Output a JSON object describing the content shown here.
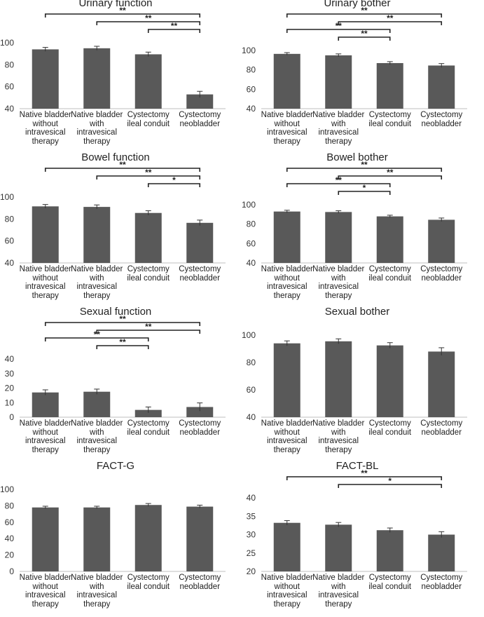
{
  "categories": [
    "Native bladder without intravesical therapy",
    "Native bladder with intravesical therapy",
    "Cystectomy ileal conduit",
    "Cystectomy neobladder"
  ],
  "category_lines": [
    [
      "Native bladder",
      "without",
      "intravesical",
      "therapy"
    ],
    [
      "Native bladder",
      "with",
      "intravesical",
      "therapy"
    ],
    [
      "Cystectomy",
      "ileal conduit"
    ],
    [
      "Cystectomy",
      "neobladder"
    ]
  ],
  "colors": {
    "bar": "#595959",
    "axis": "#bfbfbf",
    "sig": "#222222"
  },
  "chart_data": [
    {
      "type": "bar",
      "title": "Urinary function",
      "ylim": [
        40,
        100
      ],
      "yticks": [
        40,
        60,
        80,
        100
      ],
      "values": [
        94,
        95,
        89.5,
        53
      ],
      "errors": [
        1.8,
        1.8,
        2,
        2.8
      ],
      "significance": [
        {
          "from": 0,
          "to": 3,
          "label": "**"
        },
        {
          "from": 1,
          "to": 3,
          "label": "**"
        },
        {
          "from": 2,
          "to": 3,
          "label": "**"
        }
      ]
    },
    {
      "type": "bar",
      "title": "Urinary bother",
      "ylim": [
        40,
        100
      ],
      "yticks": [
        40,
        60,
        80,
        100
      ],
      "values": [
        96.5,
        95,
        87,
        84.5
      ],
      "errors": [
        1.3,
        1.5,
        1.5,
        2
      ],
      "significance": [
        {
          "from": 0,
          "to": 3,
          "label": "**"
        },
        {
          "from": 1,
          "to": 3,
          "label": "**"
        },
        {
          "from": 0,
          "to": 2,
          "label": "**"
        },
        {
          "from": 1,
          "to": 2,
          "label": "**"
        }
      ]
    },
    {
      "type": "bar",
      "title": "Bowel function",
      "ylim": [
        40,
        100
      ],
      "yticks": [
        40,
        60,
        80,
        100
      ],
      "values": [
        91.5,
        91,
        85.5,
        76.5
      ],
      "errors": [
        1.7,
        1.8,
        2,
        2.5
      ],
      "significance": [
        {
          "from": 0,
          "to": 3,
          "label": "**"
        },
        {
          "from": 1,
          "to": 3,
          "label": "**"
        },
        {
          "from": 2,
          "to": 3,
          "label": "*"
        }
      ]
    },
    {
      "type": "bar",
      "title": "Bowel bother",
      "ylim": [
        40,
        100
      ],
      "yticks": [
        40,
        60,
        80,
        100
      ],
      "values": [
        93,
        92.5,
        88,
        84.5
      ],
      "errors": [
        1.3,
        1.3,
        1.2,
        1.8
      ],
      "significance": [
        {
          "from": 0,
          "to": 3,
          "label": "**"
        },
        {
          "from": 1,
          "to": 3,
          "label": "**"
        },
        {
          "from": 0,
          "to": 2,
          "label": "**"
        },
        {
          "from": 1,
          "to": 2,
          "label": "*"
        }
      ]
    },
    {
      "type": "bar",
      "title": "Sexual function",
      "ylim": [
        0,
        40
      ],
      "yticks": [
        0,
        10,
        20,
        30,
        40
      ],
      "values": [
        17,
        17.5,
        5,
        7
      ],
      "errors": [
        1.8,
        1.8,
        2,
        2.8
      ],
      "significance": [
        {
          "from": 0,
          "to": 3,
          "label": "**"
        },
        {
          "from": 1,
          "to": 3,
          "label": "**"
        },
        {
          "from": 0,
          "to": 2,
          "label": "**"
        },
        {
          "from": 1,
          "to": 2,
          "label": "**"
        }
      ]
    },
    {
      "type": "bar",
      "title": "Sexual bother",
      "ylim": [
        40,
        100
      ],
      "yticks": [
        40,
        60,
        80,
        100
      ],
      "values": [
        94,
        95.5,
        92.5,
        88
      ],
      "errors": [
        1.8,
        1.8,
        2,
        2.8
      ],
      "significance": []
    },
    {
      "type": "bar",
      "title": "FACT-G",
      "ylim": [
        0,
        100
      ],
      "yticks": [
        0,
        20,
        40,
        60,
        80,
        100
      ],
      "values": [
        78,
        78,
        81,
        79
      ],
      "errors": [
        1.5,
        1.5,
        1.8,
        1.8
      ],
      "significance": []
    },
    {
      "type": "bar",
      "title": "FACT-BL",
      "ylim": [
        20,
        40
      ],
      "yticks": [
        20,
        25,
        30,
        35,
        40
      ],
      "values": [
        33.2,
        32.7,
        31.2,
        30
      ],
      "errors": [
        0.6,
        0.6,
        0.6,
        0.8
      ],
      "significance": [
        {
          "from": 0,
          "to": 3,
          "label": "**"
        },
        {
          "from": 1,
          "to": 3,
          "label": "*"
        }
      ]
    }
  ]
}
